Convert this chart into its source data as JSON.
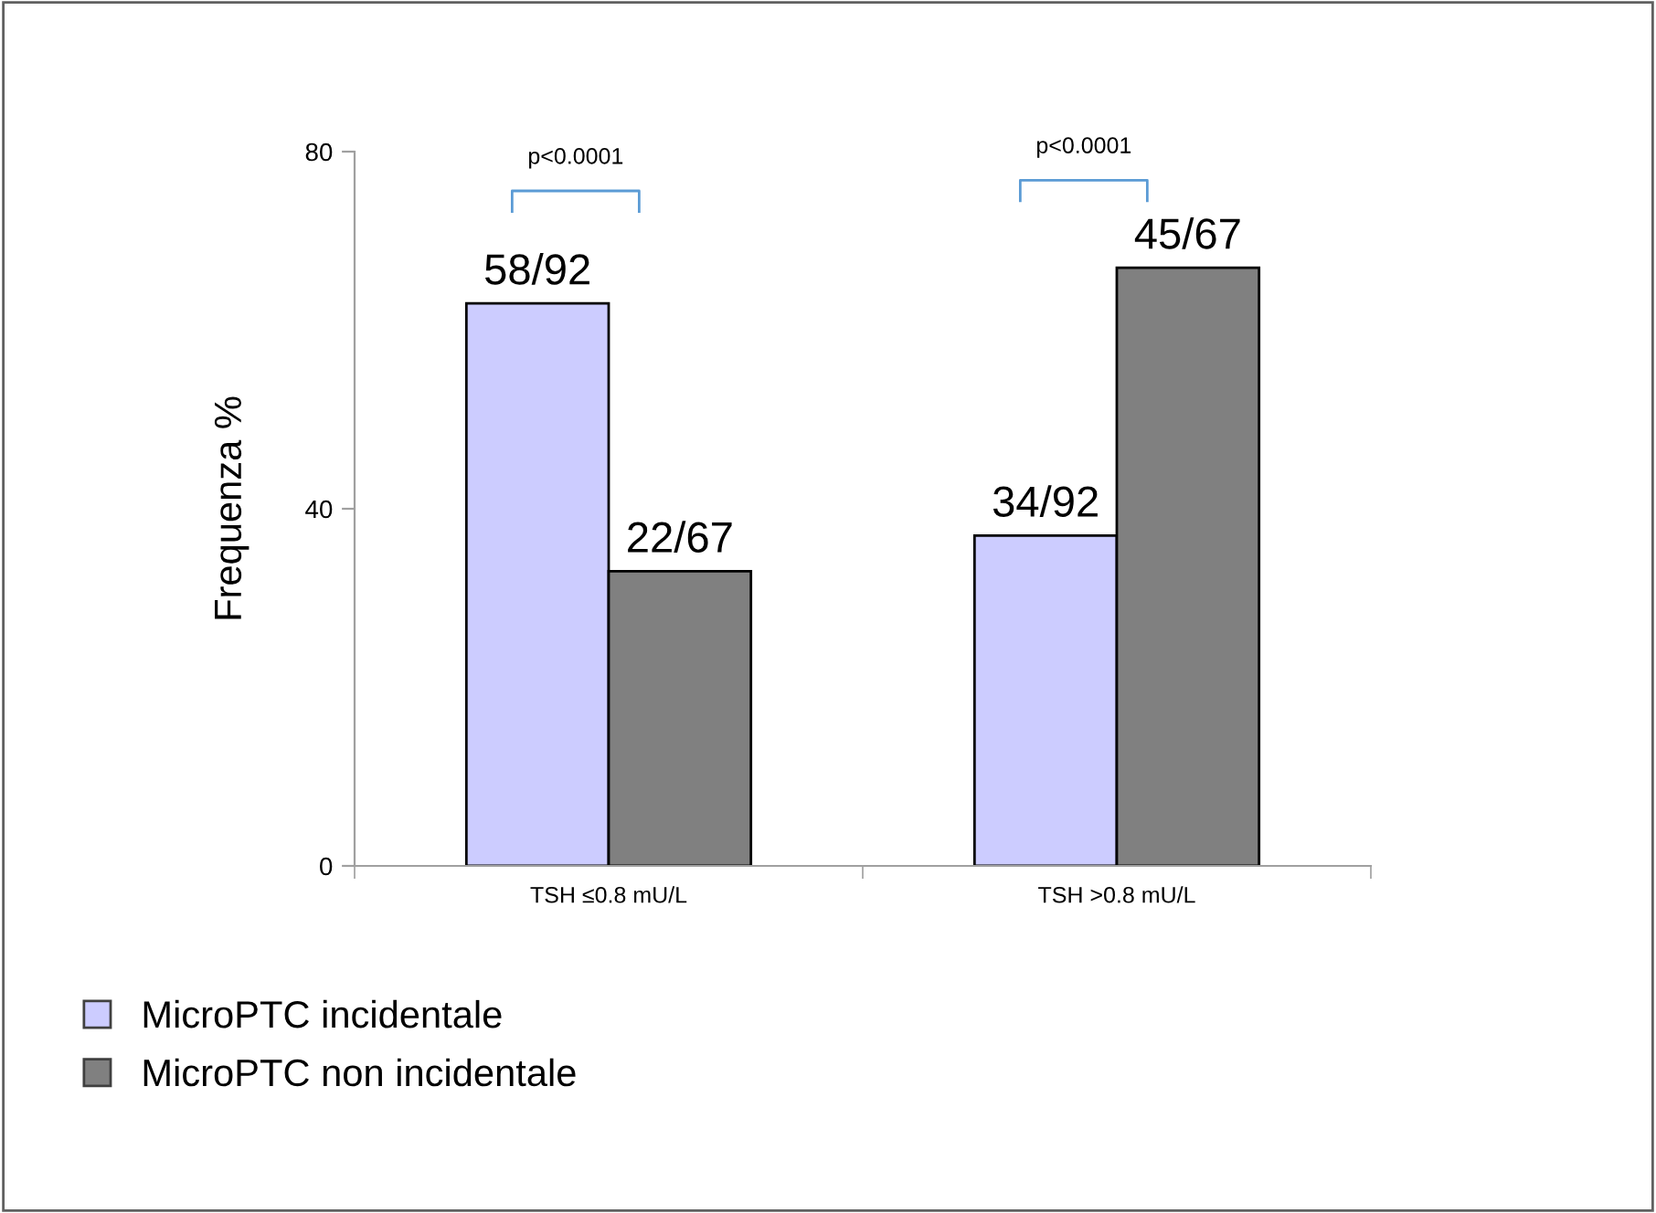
{
  "chart_data": {
    "type": "bar",
    "ylabel": "Frequenza %",
    "categories": [
      "TSH ≤0.8 mU/L",
      "TSH >0.8 mU/L"
    ],
    "series": [
      {
        "name": "MicroPTC incidentale",
        "color": "#ccccff",
        "values": [
          63,
          37
        ],
        "value_labels": [
          "58/92",
          "34/92"
        ]
      },
      {
        "name": "MicroPTC non incidentale",
        "color": "#808080",
        "values": [
          33,
          67
        ],
        "value_labels": [
          "22/67",
          "45/67"
        ]
      }
    ],
    "ylim": [
      0,
      80
    ],
    "yticks": [
      0,
      40,
      80
    ],
    "grid": false,
    "legend": "bottom left",
    "annotations": [
      "p<0.0001",
      "p<0.0001"
    ]
  }
}
